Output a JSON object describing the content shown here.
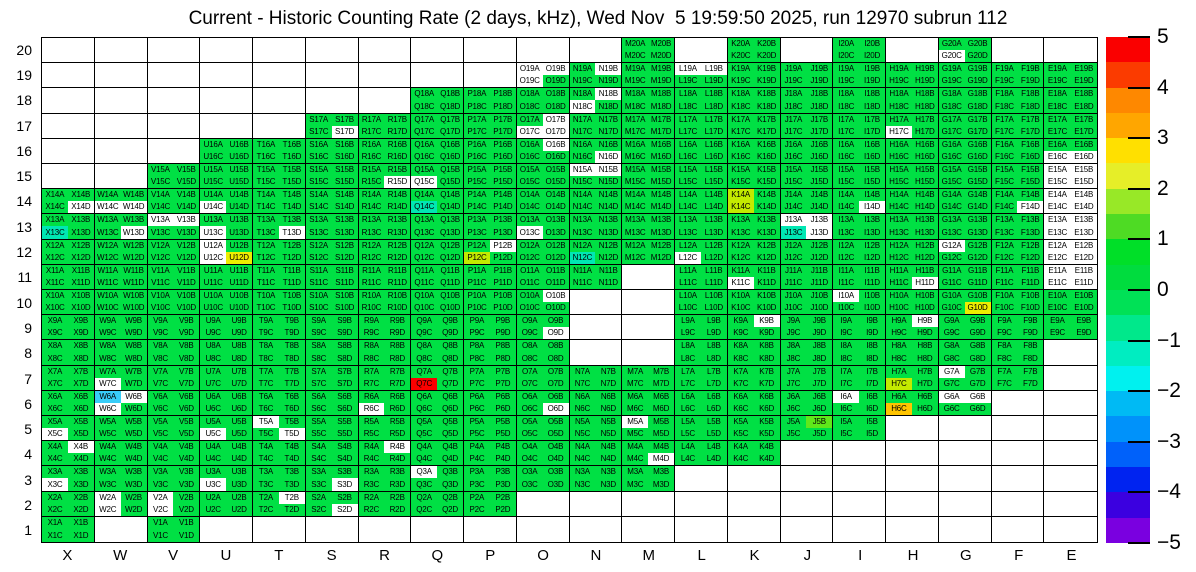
{
  "title": "Current - Historic Counting Rate (2 days, kHz), Wed Nov  5 19:59:50 2025, run 12970 subrun 112",
  "colors": {
    "g": "#00e044",
    "G": "#5fe81a",
    "w": "#ffffff",
    "r": "#fb0000",
    "y": "#eeee00",
    "Y": "#c3ea00",
    "o": "#ffc400",
    "c": "#38cdf8",
    "t": "#00e7b3"
  },
  "chart_data": {
    "type": "heatmap",
    "title": "Current - Historic Counting Rate (2 days, kHz), Wed Nov  5 19:59:50 2025, run 12970 subrun 112",
    "x_categories": [
      "X",
      "W",
      "V",
      "U",
      "T",
      "S",
      "R",
      "Q",
      "P",
      "O",
      "N",
      "M",
      "L",
      "K",
      "J",
      "I",
      "H",
      "G",
      "F",
      "E"
    ],
    "y_categories": [
      20,
      19,
      18,
      17,
      16,
      15,
      14,
      13,
      12,
      11,
      10,
      9,
      8,
      7,
      6,
      5,
      4,
      3,
      2,
      1
    ],
    "subcell_suffixes": [
      "A",
      "B",
      "C",
      "D"
    ],
    "cell_label_rule": "column letter + row number + suffix, e.g. X14A; each block holds A,B (top) and C,D (bottom)",
    "value_scale": {
      "min": -5,
      "max": 5,
      "units": "kHz difference",
      "tick_values": [
        5,
        4,
        3,
        2,
        1,
        0,
        -1,
        -2,
        -3,
        -4,
        -5
      ],
      "tick_labels": [
        "5",
        "4",
        "3",
        "2",
        "1",
        "0",
        "−1",
        "−2",
        "−3",
        "−4",
        "−5"
      ]
    },
    "state_values_kHz_approx": {
      "g": "0 to 1 (typical green)",
      "G": "1 to 1.5 (light green, e.g. J5B)",
      "Y": "1.5 to 2 (yellow-green, e.g. K14A K14C P12C H7C)",
      "y": "2 to 2.5 (yellow, e.g. U12D G10D)",
      "o": "3 to 3.5 (orange, H6C)",
      "r": "5 (red, Q7C)",
      "t": "-1 to -1.5 (teal, e.g. Q14C X13C N12C J13C)",
      "c": "-2 (cyan, W6A)",
      "w": "white cell with label (no data)",
      "-": "absent channel (empty outlined box)"
    },
    "colorbar_segments": [
      "#fa0000",
      "#fb3b00",
      "#fe8800",
      "#ffa600",
      "#ffe000",
      "#e6ee28",
      "#98e827",
      "#4edb24",
      "#00df28",
      "#00dc3e",
      "#00e156",
      "#00e88b",
      "#00edc1",
      "#00f1ef",
      "#00baf4",
      "#0092fa",
      "#0061fa",
      "#0023f0",
      "#3b00e0",
      "#7a00e0"
    ],
    "rows": [
      {
        "num": 20,
        "blocks": [
          "----",
          "----",
          "----",
          "----",
          "----",
          "----",
          "----",
          "----",
          "----",
          "----",
          "----",
          "gggg",
          "----",
          "gggg",
          "----",
          "gggg",
          "----",
          "ggwg",
          "----",
          "----"
        ]
      },
      {
        "num": 19,
        "blocks": [
          "----",
          "----",
          "----",
          "----",
          "----",
          "----",
          "----",
          "----",
          "----",
          "wwwg",
          "gwgg",
          "gggg",
          "wwgg",
          "gggg",
          "gggg",
          "gggg",
          "gggg",
          "gggg",
          "gggg",
          "gggg"
        ]
      },
      {
        "num": 18,
        "blocks": [
          "----",
          "----",
          "----",
          "----",
          "----",
          "----",
          "----",
          "gggg",
          "gggg",
          "gggg",
          "gwwg",
          "gggg",
          "gggg",
          "gggg",
          "gggg",
          "gggg",
          "gggg",
          "gggg",
          "gggg",
          "gggg"
        ]
      },
      {
        "num": 17,
        "blocks": [
          "----",
          "----",
          "----",
          "----",
          "----",
          "gggw",
          "gggg",
          "gggg",
          "gggg",
          "gwww",
          "gggg",
          "gggg",
          "gggg",
          "gggg",
          "gggg",
          "gggg",
          "ggwg",
          "gggg",
          "gggg",
          "gggg"
        ]
      },
      {
        "num": 16,
        "blocks": [
          "----",
          "----",
          "----",
          "gggg",
          "gggg",
          "gggg",
          "gggg",
          "gggg",
          "gggg",
          "gwgg",
          "gggw",
          "gggg",
          "gggg",
          "gggg",
          "gggg",
          "gggg",
          "gggg",
          "gggg",
          "gggg",
          "ggww"
        ]
      },
      {
        "num": 15,
        "blocks": [
          "----",
          "----",
          "gggg",
          "gggg",
          "gggg",
          "gggg",
          "gggw",
          "ggwg",
          "gggg",
          "gggg",
          "wwgg",
          "gggg",
          "gggg",
          "gggg",
          "gggg",
          "gggg",
          "gggg",
          "gggg",
          "gggg",
          "wwww"
        ]
      },
      {
        "num": 14,
        "blocks": [
          "gggw",
          "ggww",
          "gggg",
          "ggwg",
          "gggg",
          "gggg",
          "gggg",
          "ggtg",
          "gggg",
          "gggg",
          "gggg",
          "gggg",
          "gggg",
          "YgYg",
          "gggg",
          "gggw",
          "gggg",
          "gggg",
          "gggw",
          "wwww"
        ]
      },
      {
        "num": 13,
        "blocks": [
          "ggtg",
          "gggw",
          "wwgg",
          "ggwg",
          "gggw",
          "gggg",
          "gggg",
          "gggg",
          "gggg",
          "ggwg",
          "gggg",
          "gggg",
          "gggg",
          "gggg",
          "wwtw",
          "gggg",
          "gggg",
          "gggg",
          "gggg",
          "wwww"
        ]
      },
      {
        "num": 12,
        "blocks": [
          "gggg",
          "gggg",
          "gggg",
          "wgwy",
          "gggg",
          "gggg",
          "gggg",
          "gggg",
          "gwYg",
          "gggg",
          "ggtg",
          "gggg",
          "ggwg",
          "gggg",
          "gggg",
          "gggg",
          "gggg",
          "wggg",
          "gggg",
          "wwww"
        ]
      },
      {
        "num": 11,
        "blocks": [
          "gggg",
          "gggg",
          "gggg",
          "gggg",
          "gggg",
          "gggg",
          "gggg",
          "gggg",
          "gggg",
          "gggg",
          "gggg",
          "----",
          "gggg",
          "ggwg",
          "gggg",
          "gggg",
          "gggw",
          "gggg",
          "gggg",
          "wwww"
        ]
      },
      {
        "num": 10,
        "blocks": [
          "gggg",
          "gggg",
          "gggg",
          "gggg",
          "gggg",
          "gggg",
          "gggg",
          "gggg",
          "gggg",
          "gwgg",
          "----",
          "----",
          "gggg",
          "gggg",
          "gggg",
          "wggg",
          "gggg",
          "gggy",
          "gggg",
          "gggg"
        ]
      },
      {
        "num": 9,
        "blocks": [
          "gggg",
          "gggg",
          "gggg",
          "gggg",
          "gggg",
          "gggg",
          "gggg",
          "gggg",
          "gggg",
          "gggw",
          "----",
          "----",
          "gggg",
          "gwgg",
          "gggg",
          "gggg",
          "gwgg",
          "gggg",
          "gggg",
          "gggg"
        ]
      },
      {
        "num": 8,
        "blocks": [
          "gggg",
          "gggg",
          "gggg",
          "gggg",
          "gggg",
          "gggg",
          "gggg",
          "gggg",
          "gggg",
          "gggg",
          "----",
          "----",
          "gggg",
          "gggg",
          "gggg",
          "gggg",
          "gggg",
          "gggg",
          "gggg",
          "----"
        ]
      },
      {
        "num": 7,
        "blocks": [
          "gggg",
          "ggwg",
          "gggg",
          "gggg",
          "gggg",
          "gggg",
          "gggg",
          "ggrg",
          "gggg",
          "gggg",
          "gggg",
          "gggg",
          "gggg",
          "gggg",
          "gggg",
          "gggg",
          "ggYg",
          "wggg",
          "gggg",
          "----"
        ]
      },
      {
        "num": 6,
        "blocks": [
          "gggg",
          "cwwg",
          "gggg",
          "gggg",
          "gggg",
          "gggg",
          "ggwg",
          "gggg",
          "gggg",
          "gggw",
          "gggg",
          "gggg",
          "gggg",
          "gggg",
          "gggg",
          "wggg",
          "ggog",
          "wwgg",
          "----",
          "----"
        ]
      },
      {
        "num": 5,
        "blocks": [
          "ggwg",
          "gggg",
          "gggg",
          "ggwg",
          "wggw",
          "gggg",
          "gggg",
          "gggg",
          "gggg",
          "gggg",
          "gggg",
          "wggg",
          "gggg",
          "gggg",
          "gGgg",
          "gggg",
          "----",
          "----",
          "----",
          "----"
        ]
      },
      {
        "num": 4,
        "blocks": [
          "gwgg",
          "gggg",
          "gggg",
          "gggg",
          "gggg",
          "gggg",
          "gwgg",
          "gggg",
          "gggg",
          "gggg",
          "gggg",
          "gggw",
          "gggg",
          "gggg",
          "----",
          "----",
          "----",
          "----",
          "----",
          "----"
        ]
      },
      {
        "num": 3,
        "blocks": [
          "ggwg",
          "gggg",
          "gggg",
          "ggwg",
          "gggg",
          "gggw",
          "gggg",
          "wggg",
          "gggg",
          "gggg",
          "gggg",
          "gggg",
          "----",
          "----",
          "----",
          "----",
          "----",
          "----",
          "----",
          "----"
        ]
      },
      {
        "num": 2,
        "blocks": [
          "gggg",
          "wgwg",
          "wgwg",
          "gggg",
          "gwgg",
          "gggw",
          "gggg",
          "gggg",
          "gggg",
          "----",
          "----",
          "----",
          "----",
          "----",
          "----",
          "----",
          "----",
          "----",
          "----",
          "----"
        ]
      },
      {
        "num": 1,
        "blocks": [
          "gggg",
          "----",
          "gggg",
          "----",
          "----",
          "----",
          "----",
          "----",
          "----",
          "----",
          "----",
          "----",
          "----",
          "----",
          "----",
          "----",
          "----",
          "----",
          "----",
          "----"
        ]
      }
    ],
    "legend_position": "right colorbar",
    "grid": "black 1px outlines around every letter-column block"
  }
}
